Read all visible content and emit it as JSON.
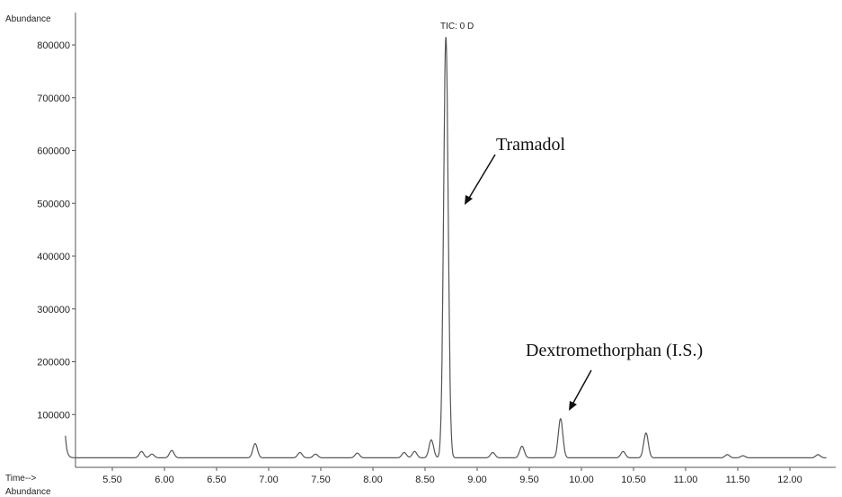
{
  "chart_data": {
    "type": "line",
    "title": "TIC: 0 D",
    "ylabel": "Abundance",
    "xlabel": "Time-->",
    "bottom_label": "Abundance",
    "xlim": [
      5.05,
      12.35
    ],
    "ylim": [
      0,
      830000
    ],
    "xticks": [
      5.5,
      6.0,
      6.5,
      7.0,
      7.5,
      8.0,
      8.5,
      9.0,
      9.5,
      10.0,
      10.5,
      11.0,
      11.5,
      12.0
    ],
    "xtick_labels": [
      "5.50",
      "6.00",
      "6.50",
      "7.00",
      "7.50",
      "8.00",
      "8.50",
      "9.00",
      "9.50",
      "10.00",
      "10.50",
      "11.00",
      "11.50",
      "12.00"
    ],
    "yticks": [
      100000,
      200000,
      300000,
      400000,
      500000,
      600000,
      700000,
      800000
    ],
    "ytick_labels": [
      "100000",
      "200000",
      "300000",
      "400000",
      "500000",
      "600000",
      "700000",
      "800000"
    ],
    "grid": false,
    "series": [
      {
        "color": "#555555",
        "baseline": 18000,
        "start_spike": {
          "x": 5.05,
          "y": 60000
        },
        "peaks": [
          {
            "x": 5.78,
            "y": 30000
          },
          {
            "x": 5.88,
            "y": 25000
          },
          {
            "x": 6.07,
            "y": 32000
          },
          {
            "x": 6.87,
            "y": 45000
          },
          {
            "x": 7.3,
            "y": 28000
          },
          {
            "x": 7.45,
            "y": 25000
          },
          {
            "x": 7.85,
            "y": 27000
          },
          {
            "x": 8.3,
            "y": 28000
          },
          {
            "x": 8.4,
            "y": 30000
          },
          {
            "x": 8.56,
            "y": 52000
          },
          {
            "x": 8.7,
            "y": 815000
          },
          {
            "x": 9.15,
            "y": 28000
          },
          {
            "x": 9.43,
            "y": 40000
          },
          {
            "x": 9.8,
            "y": 92000
          },
          {
            "x": 10.4,
            "y": 30000
          },
          {
            "x": 10.62,
            "y": 65000
          },
          {
            "x": 11.4,
            "y": 24000
          },
          {
            "x": 11.55,
            "y": 22000
          },
          {
            "x": 12.27,
            "y": 24000
          }
        ]
      }
    ],
    "annotations": [
      {
        "text": "Tramadol",
        "x": 8.7,
        "y": 815000
      },
      {
        "text": "Dextromethorphan (I.S.)",
        "x": 9.8,
        "y": 92000
      }
    ]
  }
}
